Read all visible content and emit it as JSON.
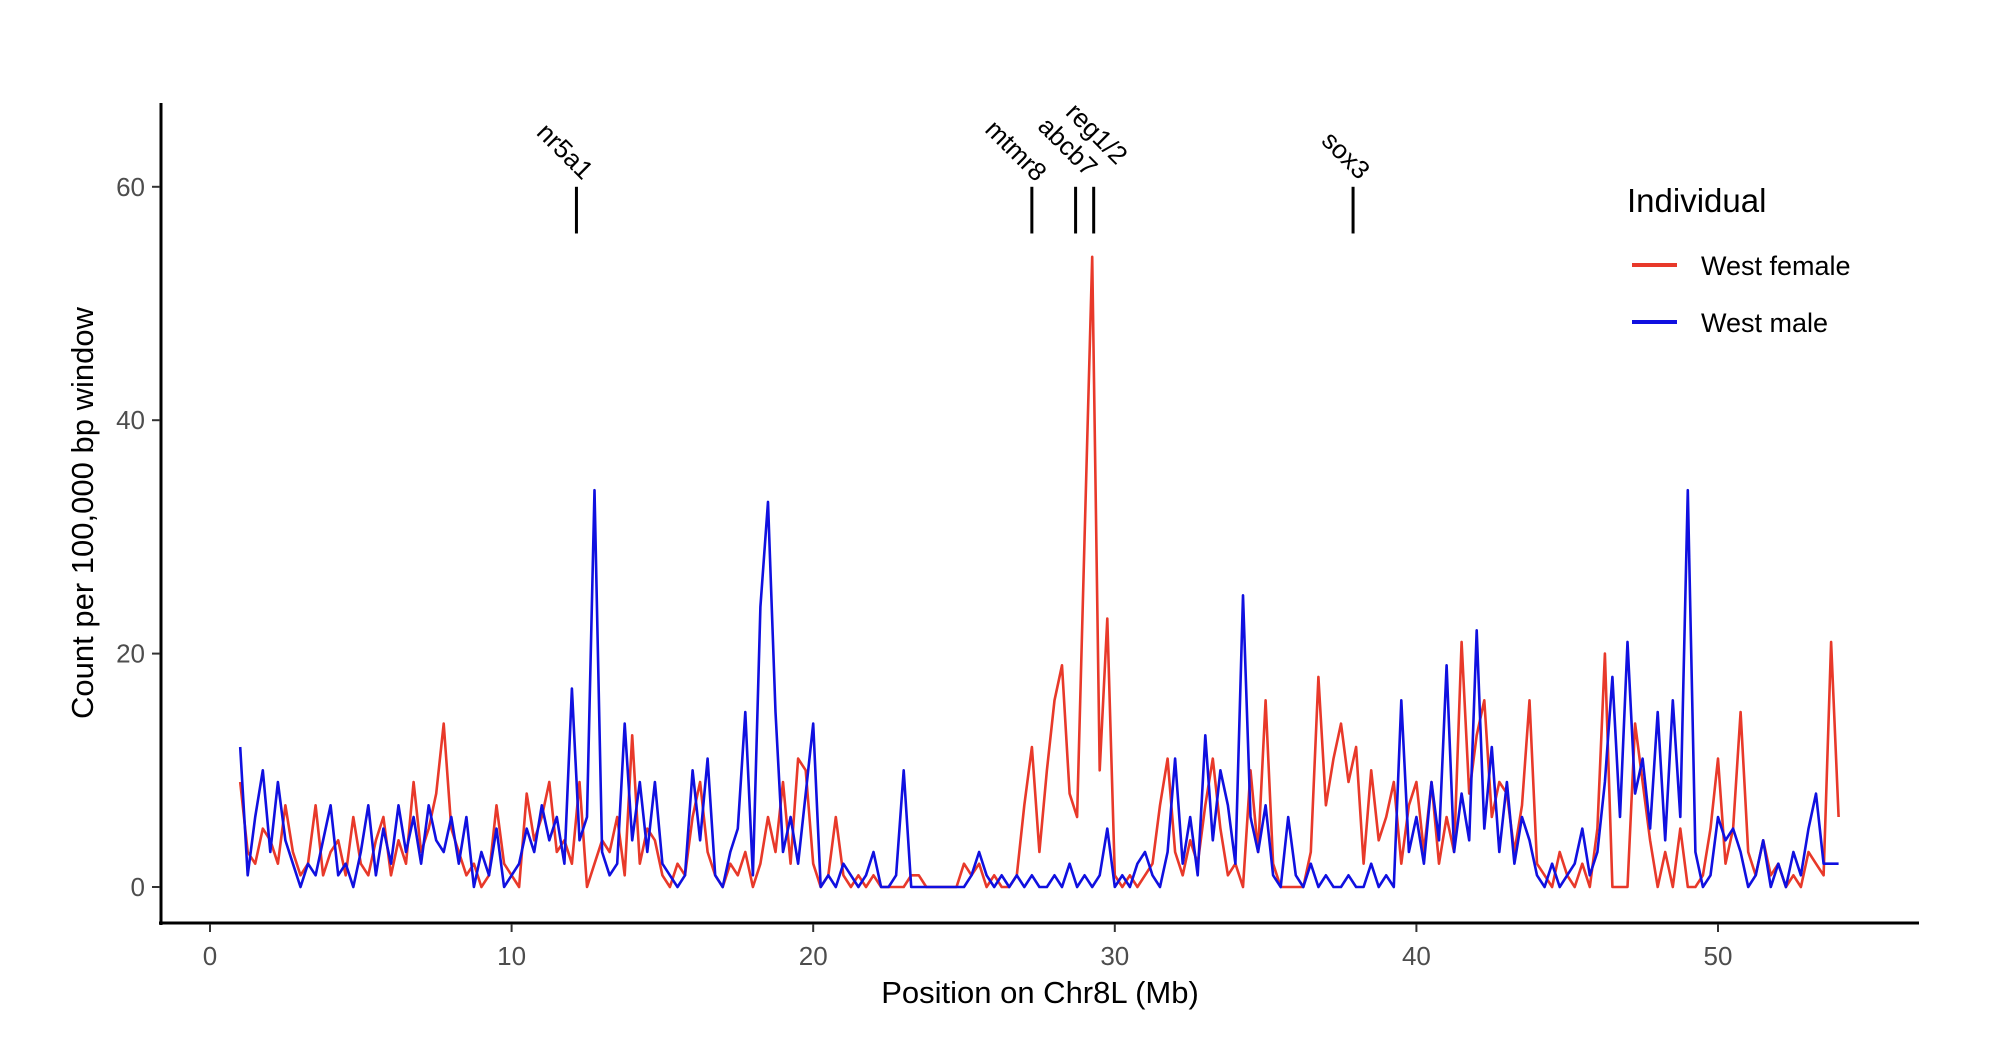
{
  "chart_data": {
    "type": "line",
    "title": "",
    "xlabel": "Position on Chr8L (Mb)",
    "ylabel": "Count per 100,000 bp window",
    "xlim": [
      -1.5,
      56.5
    ],
    "ylim": [
      -3,
      67
    ],
    "xticks": [
      0,
      10,
      20,
      30,
      40,
      50
    ],
    "yticks": [
      0,
      20,
      40,
      60
    ],
    "grid": false,
    "legend": {
      "title": "Individual",
      "placement": "right"
    },
    "annotations": [
      {
        "label": "nr5a1",
        "x": 12.15,
        "y_from": 56,
        "y_to": 60
      },
      {
        "label": "mtmr8",
        "x": 27.25,
        "y_from": 56,
        "y_to": 60
      },
      {
        "label": "abcb7",
        "x": 28.7,
        "y_from": 56,
        "y_to": 60
      },
      {
        "label": "reg1/2",
        "x": 29.3,
        "y_from": 56,
        "y_to": 60
      },
      {
        "label": "sox3",
        "x": 37.9,
        "y_from": 56,
        "y_to": 60
      }
    ],
    "x": [
      1,
      1.25,
      1.5,
      1.75,
      2,
      2.25,
      2.5,
      2.75,
      3,
      3.25,
      3.5,
      3.75,
      4,
      4.25,
      4.5,
      4.75,
      5,
      5.25,
      5.5,
      5.75,
      6,
      6.25,
      6.5,
      6.75,
      7,
      7.25,
      7.5,
      7.75,
      8,
      8.25,
      8.5,
      8.75,
      9,
      9.25,
      9.5,
      9.75,
      10,
      10.25,
      10.5,
      10.75,
      11,
      11.25,
      11.5,
      11.75,
      12,
      12.25,
      12.5,
      12.75,
      13,
      13.25,
      13.5,
      13.75,
      14,
      14.25,
      14.5,
      14.75,
      15,
      15.25,
      15.5,
      15.75,
      16,
      16.25,
      16.5,
      16.75,
      17,
      17.25,
      17.5,
      17.75,
      18,
      18.25,
      18.5,
      18.75,
      19,
      19.25,
      19.5,
      19.75,
      20,
      20.25,
      20.5,
      20.75,
      21,
      21.25,
      21.5,
      21.75,
      22,
      22.25,
      22.5,
      22.75,
      23,
      23.25,
      23.5,
      23.75,
      24,
      24.25,
      24.5,
      24.75,
      25,
      25.25,
      25.5,
      25.75,
      26,
      26.25,
      26.5,
      26.75,
      27,
      27.25,
      27.5,
      27.75,
      28,
      28.25,
      28.5,
      28.75,
      29,
      29.25,
      29.5,
      29.75,
      30,
      30.25,
      30.5,
      30.75,
      31,
      31.25,
      31.5,
      31.75,
      32,
      32.25,
      32.5,
      32.75,
      33,
      33.25,
      33.5,
      33.75,
      34,
      34.25,
      34.5,
      34.75,
      35,
      35.25,
      35.5,
      35.75,
      36,
      36.25,
      36.5,
      36.75,
      37,
      37.25,
      37.5,
      37.75,
      38,
      38.25,
      38.5,
      38.75,
      39,
      39.25,
      39.5,
      39.75,
      40,
      40.25,
      40.5,
      40.75,
      41,
      41.25,
      41.5,
      41.75,
      42,
      42.25,
      42.5,
      42.75,
      43,
      43.25,
      43.5,
      43.75,
      44,
      44.25,
      44.5,
      44.75,
      45,
      45.25,
      45.5,
      45.75,
      46,
      46.25,
      46.5,
      46.75,
      47,
      47.25,
      47.5,
      47.75,
      48,
      48.25,
      48.5,
      48.75,
      49,
      49.25,
      49.5,
      49.75,
      50,
      50.25,
      50.5,
      50.75,
      51,
      51.25,
      51.5,
      51.75,
      52,
      52.25,
      52.5,
      52.75,
      53,
      53.25,
      53.5,
      53.75,
      54
    ],
    "series": [
      {
        "name": "West female",
        "color": "#e8392a",
        "values": [
          9,
          3,
          2,
          5,
          4,
          2,
          7,
          3,
          1,
          2,
          7,
          1,
          3,
          4,
          1,
          6,
          2,
          1,
          4,
          6,
          1,
          4,
          2,
          9,
          3,
          5,
          8,
          14,
          5,
          3,
          1,
          2,
          0,
          1,
          7,
          2,
          1,
          0,
          8,
          4,
          6,
          9,
          3,
          4,
          2,
          9,
          0,
          2,
          4,
          3,
          6,
          1,
          13,
          2,
          5,
          4,
          1,
          0,
          2,
          1,
          6,
          9,
          3,
          1,
          0,
          2,
          1,
          3,
          0,
          2,
          6,
          3,
          9,
          2,
          11,
          10,
          2,
          0,
          1,
          6,
          1,
          0,
          1,
          0,
          1,
          0,
          0,
          0,
          0,
          1,
          1,
          0,
          0,
          0,
          0,
          0,
          2,
          1,
          2,
          0,
          1,
          0,
          0,
          1,
          7,
          12,
          3,
          10,
          16,
          19,
          8,
          6,
          30,
          54,
          10,
          23,
          1,
          0,
          1,
          0,
          1,
          2,
          7,
          11,
          3,
          1,
          4,
          2,
          7,
          11,
          5,
          1,
          2,
          0,
          10,
          3,
          16,
          2,
          0,
          0,
          0,
          0,
          3,
          18,
          7,
          11,
          14,
          9,
          12,
          2,
          10,
          4,
          6,
          9,
          2,
          7,
          9,
          3,
          9,
          2,
          6,
          3,
          21,
          8,
          13,
          16,
          6,
          9,
          8,
          3,
          7,
          16,
          2,
          1,
          0,
          3,
          1,
          0,
          2,
          0,
          5,
          20,
          0,
          0,
          0,
          14,
          9,
          4,
          0,
          3,
          0,
          5,
          0,
          0,
          1,
          5,
          11,
          2,
          5,
          15,
          3,
          1,
          4,
          1,
          2,
          0,
          1,
          0,
          3,
          2,
          1,
          21,
          6
        ]
      },
      {
        "name": "West male",
        "color": "#1010e0",
        "values": [
          12,
          1,
          6,
          10,
          3,
          9,
          4,
          2,
          0,
          2,
          1,
          4,
          7,
          1,
          2,
          0,
          3,
          7,
          1,
          5,
          2,
          7,
          3,
          6,
          2,
          7,
          4,
          3,
          6,
          2,
          6,
          0,
          3,
          1,
          5,
          0,
          1,
          2,
          5,
          3,
          7,
          4,
          6,
          2,
          17,
          4,
          6,
          34,
          3,
          1,
          2,
          14,
          4,
          9,
          3,
          9,
          2,
          1,
          0,
          1,
          10,
          4,
          11,
          1,
          0,
          3,
          5,
          15,
          1,
          24,
          33,
          15,
          3,
          6,
          2,
          8,
          14,
          0,
          1,
          0,
          2,
          1,
          0,
          1,
          3,
          0,
          0,
          1,
          10,
          0,
          0,
          0,
          0,
          0,
          0,
          0,
          0,
          1,
          3,
          1,
          0,
          1,
          0,
          1,
          0,
          1,
          0,
          0,
          1,
          0,
          2,
          0,
          1,
          0,
          1,
          5,
          0,
          1,
          0,
          2,
          3,
          1,
          0,
          3,
          11,
          2,
          6,
          1,
          13,
          4,
          10,
          7,
          2,
          25,
          6,
          3,
          7,
          1,
          0,
          6,
          1,
          0,
          2,
          0,
          1,
          0,
          0,
          1,
          0,
          0,
          2,
          0,
          1,
          0,
          16,
          3,
          6,
          2,
          9,
          4,
          19,
          3,
          8,
          4,
          22,
          5,
          12,
          3,
          9,
          2,
          6,
          4,
          1,
          0,
          2,
          0,
          1,
          2,
          5,
          1,
          3,
          9,
          18,
          6,
          21,
          8,
          11,
          5,
          15,
          4,
          16,
          6,
          34,
          3,
          0,
          1,
          6,
          4,
          5,
          3,
          0,
          1,
          4,
          0,
          2,
          0,
          3,
          1,
          5,
          8,
          2,
          2,
          2
        ]
      }
    ]
  }
}
